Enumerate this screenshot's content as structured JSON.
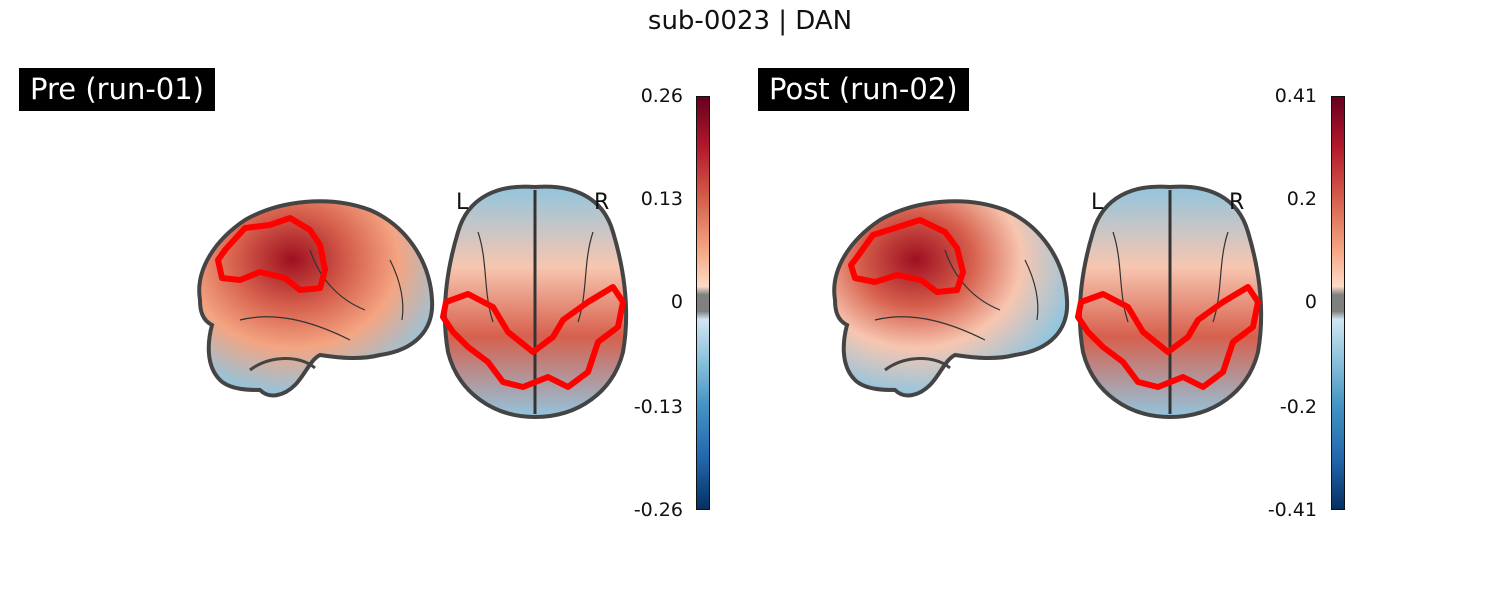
{
  "figure_title": "sub-0023 | DAN",
  "panels": [
    {
      "label": "Pre (run-01)",
      "orientation_left": "L",
      "orientation_right": "R",
      "colorbar": {
        "max": "0.26",
        "mid_high": "0.13",
        "zero": "0",
        "mid_low": "-0.13",
        "min": "-0.26"
      }
    },
    {
      "label": "Post (run-02)",
      "orientation_left": "L",
      "orientation_right": "R",
      "colorbar": {
        "max": "0.41",
        "mid_high": "0.2",
        "zero": "0",
        "mid_low": "-0.2",
        "min": "-0.41"
      }
    }
  ],
  "colors": {
    "roi_outline": "#ff0000",
    "cmap_low": "#08306b",
    "cmap_high": "#67001f",
    "threshold_gray": "#808080"
  }
}
